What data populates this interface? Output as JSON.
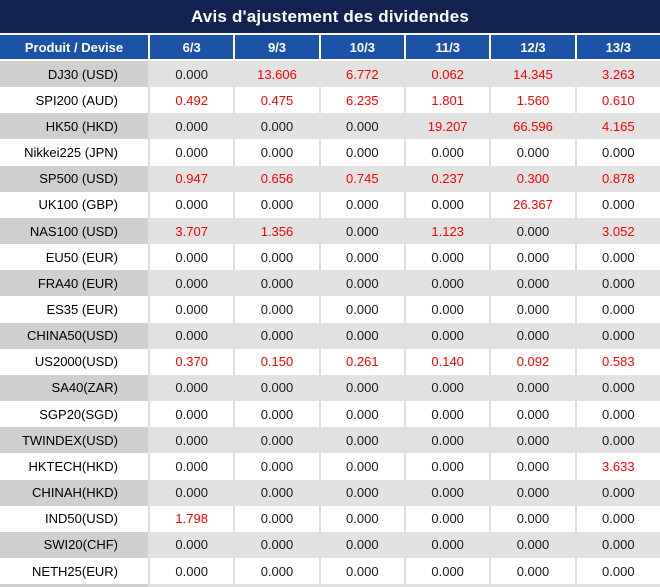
{
  "title": "Avis d'ajustement des dividendes",
  "table": {
    "product_header": "Produit / Devise",
    "date_columns": [
      "6/3",
      "9/3",
      "10/3",
      "11/3",
      "12/3",
      "13/3"
    ],
    "rows": [
      {
        "product": "DJ30 (USD)",
        "values": [
          "0.000",
          "13.606",
          "6.772",
          "0.062",
          "14.345",
          "3.263"
        ]
      },
      {
        "product": "SPI200 (AUD)",
        "values": [
          "0.492",
          "0.475",
          "6.235",
          "1.801",
          "1.560",
          "0.610"
        ]
      },
      {
        "product": "HK50 (HKD)",
        "values": [
          "0.000",
          "0.000",
          "0.000",
          "19.207",
          "66.596",
          "4.165"
        ]
      },
      {
        "product": "Nikkei225 (JPN)",
        "values": [
          "0.000",
          "0.000",
          "0.000",
          "0.000",
          "0.000",
          "0.000"
        ]
      },
      {
        "product": "SP500 (USD)",
        "values": [
          "0.947",
          "0.656",
          "0.745",
          "0.237",
          "0.300",
          "0.878"
        ]
      },
      {
        "product": "UK100 (GBP)",
        "values": [
          "0.000",
          "0.000",
          "0.000",
          "0.000",
          "26.367",
          "0.000"
        ]
      },
      {
        "product": "NAS100 (USD)",
        "values": [
          "3.707",
          "1.356",
          "0.000",
          "1.123",
          "0.000",
          "3.052"
        ]
      },
      {
        "product": "EU50 (EUR)",
        "values": [
          "0.000",
          "0.000",
          "0.000",
          "0.000",
          "0.000",
          "0.000"
        ]
      },
      {
        "product": "FRA40 (EUR)",
        "values": [
          "0.000",
          "0.000",
          "0.000",
          "0.000",
          "0.000",
          "0.000"
        ]
      },
      {
        "product": "ES35 (EUR)",
        "values": [
          "0.000",
          "0.000",
          "0.000",
          "0.000",
          "0.000",
          "0.000"
        ]
      },
      {
        "product": "CHINA50(USD)",
        "values": [
          "0.000",
          "0.000",
          "0.000",
          "0.000",
          "0.000",
          "0.000"
        ]
      },
      {
        "product": "US2000(USD)",
        "values": [
          "0.370",
          "0.150",
          "0.261",
          "0.140",
          "0.092",
          "0.583"
        ]
      },
      {
        "product": "SA40(ZAR)",
        "values": [
          "0.000",
          "0.000",
          "0.000",
          "0.000",
          "0.000",
          "0.000"
        ]
      },
      {
        "product": "SGP20(SGD)",
        "values": [
          "0.000",
          "0.000",
          "0.000",
          "0.000",
          "0.000",
          "0.000"
        ]
      },
      {
        "product": "TWINDEX(USD)",
        "values": [
          "0.000",
          "0.000",
          "0.000",
          "0.000",
          "0.000",
          "0.000"
        ]
      },
      {
        "product": "HKTECH(HKD)",
        "values": [
          "0.000",
          "0.000",
          "0.000",
          "0.000",
          "0.000",
          "3.633"
        ]
      },
      {
        "product": "CHINAH(HKD)",
        "values": [
          "0.000",
          "0.000",
          "0.000",
          "0.000",
          "0.000",
          "0.000"
        ]
      },
      {
        "product": "IND50(USD)",
        "values": [
          "1.798",
          "0.000",
          "0.000",
          "0.000",
          "0.000",
          "0.000"
        ]
      },
      {
        "product": "SWI20(CHF)",
        "values": [
          "0.000",
          "0.000",
          "0.000",
          "0.000",
          "0.000",
          "0.000"
        ]
      },
      {
        "product": "NETH25(EUR)",
        "values": [
          "0.000",
          "0.000",
          "0.000",
          "0.000",
          "0.000",
          "0.000"
        ]
      }
    ]
  },
  "colors": {
    "title_bar_navy": "#132350",
    "header_blue": "#1b54a6",
    "gray_row_product": "#d0cece",
    "gray_row_value": "#e2e2e2",
    "zero_value_text": "#1a1a1a",
    "nonzero_value_text": "#fe0000"
  }
}
